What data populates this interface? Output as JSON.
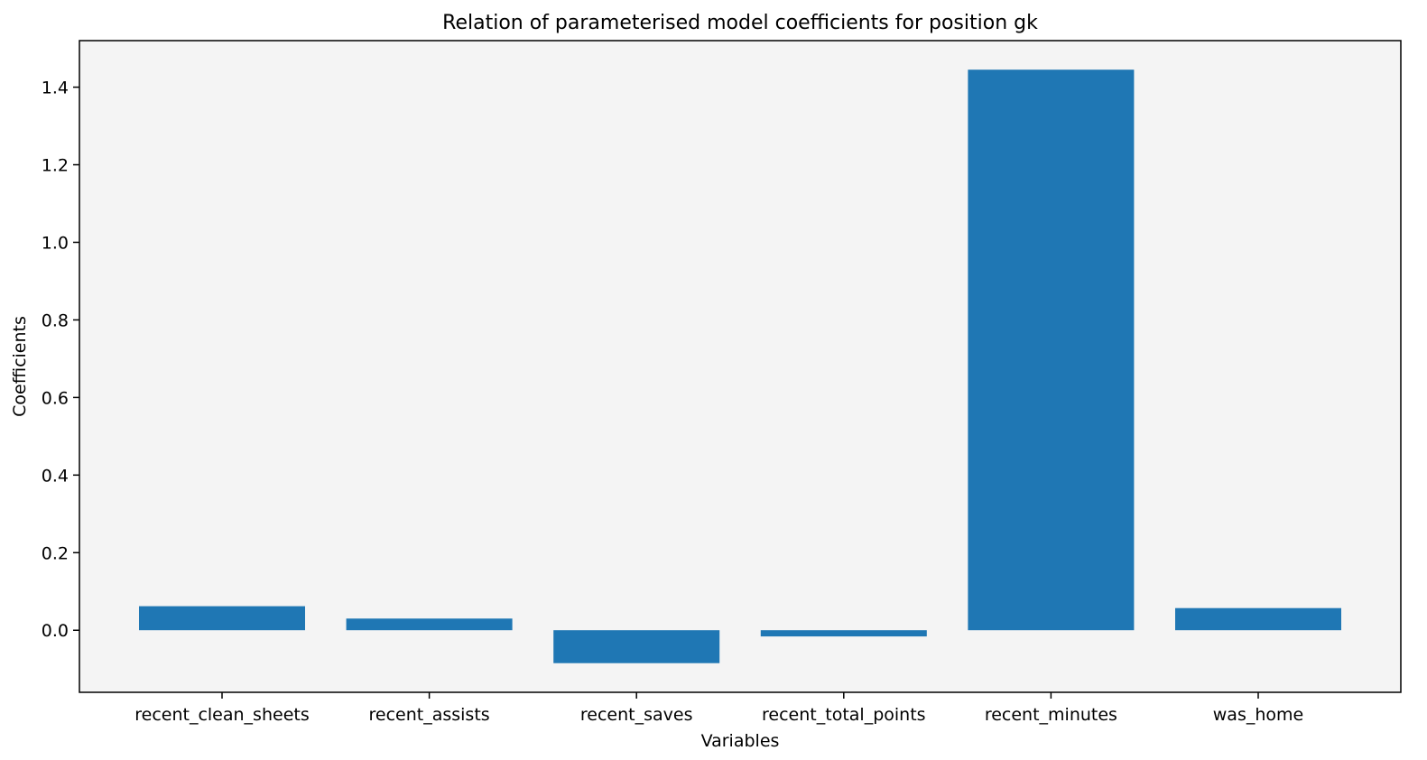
{
  "chart_data": {
    "type": "bar",
    "title": "Relation of parameterised model coefficients for position gk",
    "xlabel": "Variables",
    "ylabel": "Coefficients",
    "categories": [
      "recent_clean_sheets",
      "recent_assists",
      "recent_saves",
      "recent_total_points",
      "recent_minutes",
      "was_home"
    ],
    "values": [
      0.062,
      0.03,
      -0.085,
      -0.016,
      1.445,
      0.057
    ],
    "ylim": [
      -0.16,
      1.52
    ],
    "yticks": [
      0.0,
      0.2,
      0.4,
      0.6,
      0.8,
      1.0,
      1.2,
      1.4
    ],
    "ytick_labels": [
      "0.0",
      "0.2",
      "0.4",
      "0.6",
      "0.8",
      "1.0",
      "1.2",
      "1.4"
    ],
    "grid": false,
    "colors": {
      "bar": "#1f77b4",
      "plot_background": "#f4f4f4",
      "axes": "#000000"
    }
  }
}
